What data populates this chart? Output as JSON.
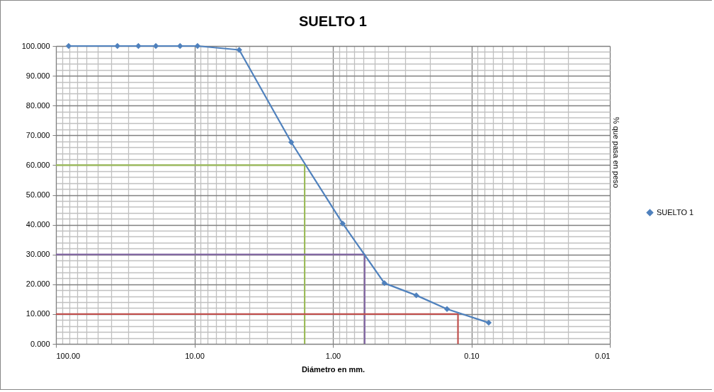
{
  "chart_data": {
    "type": "line",
    "title": "SUELTO 1",
    "xlabel": "Diámetro en mm.",
    "ylabel": "% que pasa en peso",
    "log": "x",
    "grid": true,
    "legend": "right",
    "marker": "diamond",
    "line_style": "solid",
    "xlim": [
      100,
      0.01
    ],
    "ylim": [
      0,
      100
    ],
    "xticks": [
      {
        "value": 100,
        "label": "100.00"
      },
      {
        "value": 90,
        "label": null
      },
      {
        "value": 80,
        "label": null
      },
      {
        "value": 70,
        "label": null
      },
      {
        "value": 60,
        "label": null
      },
      {
        "value": 50,
        "label": null
      },
      {
        "value": 40,
        "label": null
      },
      {
        "value": 30,
        "label": null
      },
      {
        "value": 20,
        "label": null
      },
      {
        "value": 10,
        "label": "10.00"
      },
      {
        "value": 9,
        "label": null
      },
      {
        "value": 8,
        "label": null
      },
      {
        "value": 7,
        "label": null
      },
      {
        "value": 6,
        "label": null
      },
      {
        "value": 5,
        "label": null
      },
      {
        "value": 4,
        "label": null
      },
      {
        "value": 3,
        "label": null
      },
      {
        "value": 2,
        "label": null
      },
      {
        "value": 1,
        "label": "1.00"
      },
      {
        "value": 0.9,
        "label": null
      },
      {
        "value": 0.8,
        "label": null
      },
      {
        "value": 0.7,
        "label": null
      },
      {
        "value": 0.6,
        "label": null
      },
      {
        "value": 0.5,
        "label": null
      },
      {
        "value": 0.4,
        "label": null
      },
      {
        "value": 0.3,
        "label": null
      },
      {
        "value": 0.2,
        "label": null
      },
      {
        "value": 0.1,
        "label": "0.10"
      },
      {
        "value": 0.09,
        "label": null
      },
      {
        "value": 0.08,
        "label": null
      },
      {
        "value": 0.07,
        "label": null
      },
      {
        "value": 0.06,
        "label": null
      },
      {
        "value": 0.05,
        "label": null
      },
      {
        "value": 0.04,
        "label": null
      },
      {
        "value": 0.03,
        "label": null
      },
      {
        "value": 0.02,
        "label": null
      },
      {
        "value": 0.01,
        "label": "0.01"
      }
    ],
    "yticks": [
      {
        "value": 0,
        "label": "0.000"
      },
      {
        "value": 2,
        "label": null
      },
      {
        "value": 4,
        "label": null
      },
      {
        "value": 6,
        "label": null
      },
      {
        "value": 8,
        "label": null
      },
      {
        "value": 10,
        "label": "10.000"
      },
      {
        "value": 12,
        "label": null
      },
      {
        "value": 14,
        "label": null
      },
      {
        "value": 16,
        "label": null
      },
      {
        "value": 18,
        "label": null
      },
      {
        "value": 20,
        "label": "20.000"
      },
      {
        "value": 22,
        "label": null
      },
      {
        "value": 24,
        "label": null
      },
      {
        "value": 26,
        "label": null
      },
      {
        "value": 28,
        "label": null
      },
      {
        "value": 30,
        "label": "30.000"
      },
      {
        "value": 32,
        "label": null
      },
      {
        "value": 34,
        "label": null
      },
      {
        "value": 36,
        "label": null
      },
      {
        "value": 38,
        "label": null
      },
      {
        "value": 40,
        "label": "40.000"
      },
      {
        "value": 42,
        "label": null
      },
      {
        "value": 44,
        "label": null
      },
      {
        "value": 46,
        "label": null
      },
      {
        "value": 48,
        "label": null
      },
      {
        "value": 50,
        "label": "50.000"
      },
      {
        "value": 52,
        "label": null
      },
      {
        "value": 54,
        "label": null
      },
      {
        "value": 56,
        "label": null
      },
      {
        "value": 58,
        "label": null
      },
      {
        "value": 60,
        "label": "60.000"
      },
      {
        "value": 62,
        "label": null
      },
      {
        "value": 64,
        "label": null
      },
      {
        "value": 66,
        "label": null
      },
      {
        "value": 68,
        "label": null
      },
      {
        "value": 70,
        "label": "70.000"
      },
      {
        "value": 72,
        "label": null
      },
      {
        "value": 74,
        "label": null
      },
      {
        "value": 76,
        "label": null
      },
      {
        "value": 78,
        "label": null
      },
      {
        "value": 80,
        "label": "80.000"
      },
      {
        "value": 82,
        "label": null
      },
      {
        "value": 84,
        "label": null
      },
      {
        "value": 86,
        "label": null
      },
      {
        "value": 88,
        "label": null
      },
      {
        "value": 90,
        "label": "90.000"
      },
      {
        "value": 92,
        "label": null
      },
      {
        "value": 94,
        "label": null
      },
      {
        "value": 96,
        "label": null
      },
      {
        "value": 98,
        "label": null
      },
      {
        "value": 100,
        "label": "100.000"
      }
    ],
    "series": [
      {
        "name": "SUELTO 1",
        "color": "#4f81bd",
        "x": [
          81,
          36,
          25.4,
          19,
          12.7,
          9.5,
          4.75,
          2,
          0.85,
          0.425,
          0.25,
          0.15,
          0.075
        ],
        "values": [
          100,
          100,
          100,
          100,
          100,
          100,
          98.7,
          67.7,
          40.4,
          20.4,
          16.3,
          11.7,
          7.1
        ]
      },
      {
        "color": "#9bbb59",
        "marker": "none",
        "x": [
          100,
          1.6,
          1.6
        ],
        "values": [
          60,
          60,
          0
        ]
      },
      {
        "color": "#8064a2",
        "marker": "none",
        "x": [
          100,
          0.59,
          0.59
        ],
        "values": [
          30,
          30,
          0
        ]
      },
      {
        "color": "#c0504d",
        "marker": "none",
        "x": [
          100,
          0.125,
          0.125
        ],
        "values": [
          10,
          10,
          0
        ]
      }
    ]
  }
}
